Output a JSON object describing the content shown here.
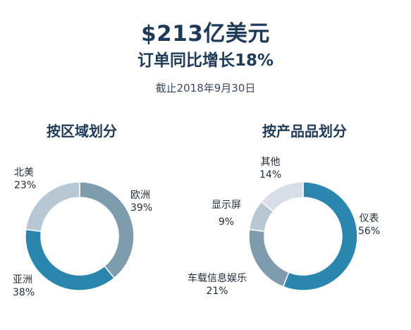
{
  "header": {
    "headline": "$213亿美元",
    "subhead": "订单同比增长18%",
    "dateline": "截止2018年9月30日"
  },
  "chart_data": [
    {
      "type": "pie",
      "title": "按区域划分",
      "slices": [
        {
          "label": "欧洲",
          "value": 39,
          "pct_label": "39%",
          "color": "#7f9caf"
        },
        {
          "label": "亚洲",
          "value": 38,
          "pct_label": "38%",
          "color": "#2a86ad"
        },
        {
          "label": "北美",
          "value": 23,
          "pct_label": "23%",
          "color": "#b7c7d3"
        }
      ]
    },
    {
      "type": "pie",
      "title": "按产品品划分",
      "slices": [
        {
          "label": "仪表",
          "value": 56,
          "pct_label": "56%",
          "color": "#2a86ad"
        },
        {
          "label": "车载信息娱乐",
          "value": 21,
          "pct_label": "21%",
          "color": "#7f9caf"
        },
        {
          "label": "显示屏",
          "value": 9,
          "pct_label": "9%",
          "color": "#b7c7d3"
        },
        {
          "label": "其他",
          "value": 14,
          "pct_label": "14%",
          "color": "#d7dee6"
        }
      ]
    }
  ]
}
